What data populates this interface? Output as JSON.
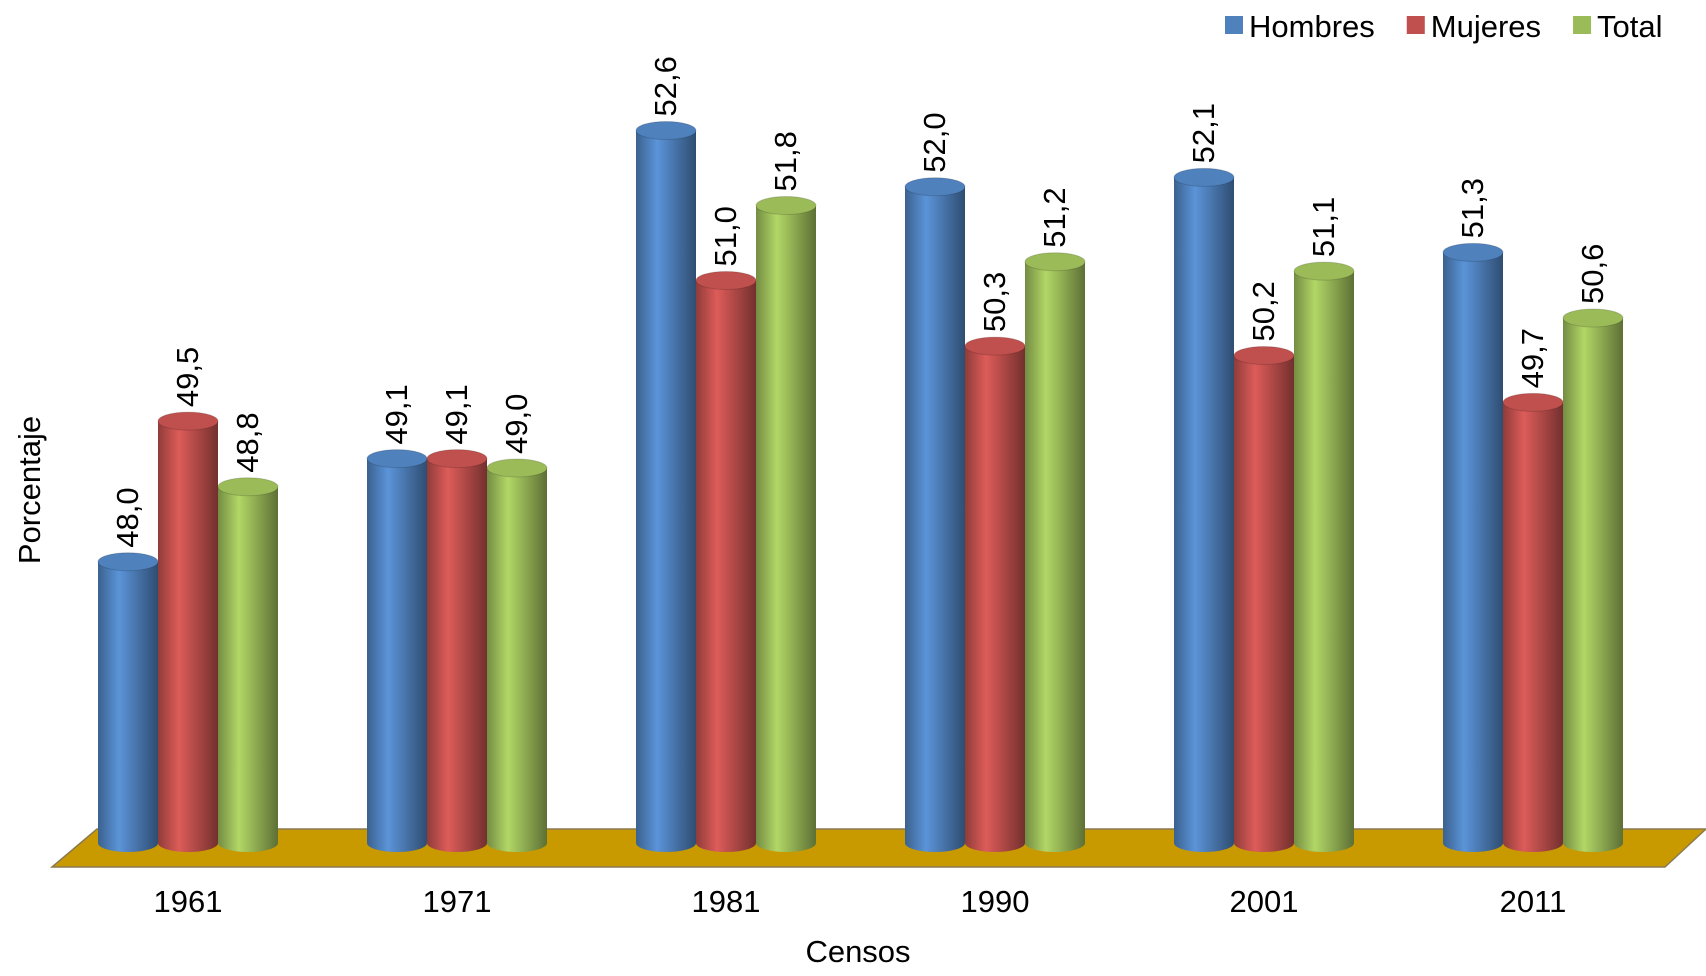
{
  "chart_data": {
    "type": "bar",
    "categories": [
      "1961",
      "1971",
      "1981",
      "1990",
      "2001",
      "2011"
    ],
    "series": [
      {
        "name": "Hombres",
        "color": "#4f81bd",
        "values": [
          48.0,
          49.1,
          52.6,
          52.0,
          52.1,
          51.3
        ],
        "value_labels": [
          "48,0",
          "49,1",
          "52,6",
          "52,0",
          "52,1",
          "51,3"
        ]
      },
      {
        "name": "Mujeres",
        "color": "#c0504d",
        "values": [
          49.5,
          49.1,
          51.0,
          50.3,
          50.2,
          49.7
        ],
        "value_labels": [
          "49,5",
          "49,1",
          "51,0",
          "50,3",
          "50,2",
          "49,7"
        ]
      },
      {
        "name": "Total",
        "color": "#9bbb59",
        "values": [
          48.8,
          49.0,
          51.8,
          51.2,
          51.1,
          50.6
        ],
        "value_labels": [
          "48,8",
          "49,0",
          "51,8",
          "51,2",
          "51,1",
          "50,6"
        ]
      }
    ],
    "ylim": [
      45,
      53
    ],
    "x_label": "Censos",
    "y_label": "Porcentaje",
    "legend": "top-right"
  }
}
